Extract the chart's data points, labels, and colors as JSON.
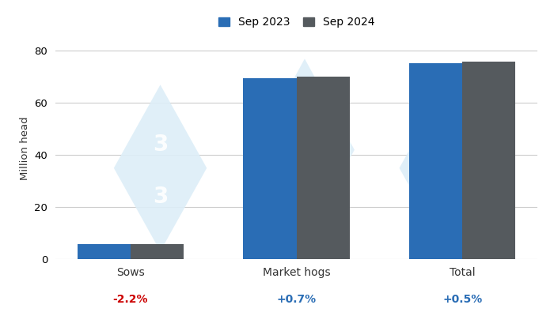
{
  "categories": [
    "Sows",
    "Market hogs",
    "Total"
  ],
  "sep2023": [
    5.8,
    69.5,
    75.4
  ],
  "sep2024": [
    5.68,
    70.0,
    75.77
  ],
  "variations": [
    "-2.2%",
    "+0.7%",
    "+0.5%"
  ],
  "var_colors": [
    "#cc0000",
    "#2a6db5",
    "#2a6db5"
  ],
  "bar_color_2023": "#2a6db5",
  "bar_color_2024": "#555a5e",
  "ylabel": "Million head",
  "legend_labels": [
    "Sep 2023",
    "Sep 2024"
  ],
  "ylim": [
    0,
    85
  ],
  "yticks": [
    0,
    20,
    40,
    60,
    80
  ],
  "bar_width": 0.32,
  "bg_color": "#ffffff",
  "watermark_color": "#ddeef8",
  "grid_color": "#cccccc"
}
